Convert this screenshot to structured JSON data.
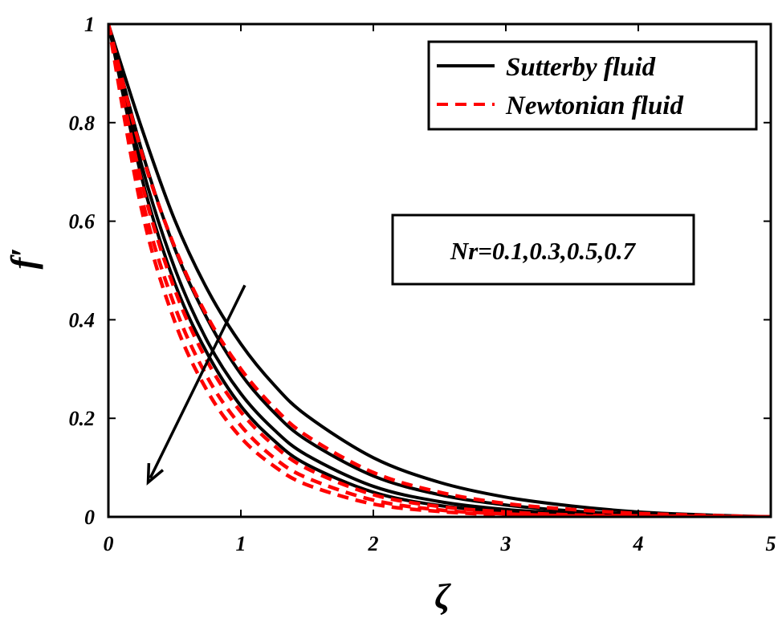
{
  "chart_data": {
    "type": "line",
    "xlabel": "ζ",
    "ylabel": "f′",
    "xlim": [
      0,
      5
    ],
    "ylim": [
      0,
      1
    ],
    "xticks": [
      0,
      1,
      2,
      3,
      4,
      5
    ],
    "yticks": [
      0,
      0.2,
      0.4,
      0.6,
      0.8,
      1
    ],
    "xtick_labels": [
      "0",
      "1",
      "2",
      "3",
      "4",
      "5"
    ],
    "ytick_labels": [
      "0",
      "0.2",
      "0.4",
      "0.6",
      "0.8",
      "1"
    ],
    "grid": false,
    "legend_position": "top-right",
    "legend": [
      {
        "label": "Sutterby fluid",
        "color": "#000000",
        "dash": "solid"
      },
      {
        "label": "Newtonian fluid",
        "color": "#ff0000",
        "dash": "dashed"
      }
    ],
    "annotation": {
      "text": "Nr=0.1,0.3,0.5,0.7"
    },
    "arrow": {
      "from": [
        1.03,
        0.47
      ],
      "to": [
        0.3,
        0.07
      ]
    },
    "series": [
      {
        "group": "Sutterby fluid",
        "color": "#000000",
        "dash": "solid",
        "values": [
          [
            0,
            1
          ],
          [
            0.25,
            0.79
          ],
          [
            0.5,
            0.603
          ],
          [
            0.75,
            0.46
          ],
          [
            1,
            0.351
          ],
          [
            1.25,
            0.268
          ],
          [
            1.5,
            0.205
          ],
          [
            2,
            0.12
          ],
          [
            2.5,
            0.07
          ],
          [
            3,
            0.04
          ],
          [
            3.5,
            0.022
          ],
          [
            4,
            0.01
          ],
          [
            4.5,
            0.004
          ],
          [
            5,
            0
          ]
        ]
      },
      {
        "group": "Sutterby fluid",
        "color": "#000000",
        "dash": "solid",
        "values": [
          [
            0,
            1
          ],
          [
            0.25,
            0.745
          ],
          [
            0.5,
            0.545
          ],
          [
            0.75,
            0.4
          ],
          [
            1,
            0.29
          ],
          [
            1.25,
            0.212
          ],
          [
            1.5,
            0.155
          ],
          [
            2,
            0.083
          ],
          [
            2.5,
            0.045
          ],
          [
            3,
            0.024
          ],
          [
            3.5,
            0.012
          ],
          [
            4,
            0.005
          ],
          [
            4.5,
            0.002
          ],
          [
            5,
            0
          ]
        ]
      },
      {
        "group": "Sutterby fluid",
        "color": "#000000",
        "dash": "solid",
        "values": [
          [
            0,
            1
          ],
          [
            0.25,
            0.715
          ],
          [
            0.5,
            0.505
          ],
          [
            0.75,
            0.355
          ],
          [
            1,
            0.25
          ],
          [
            1.25,
            0.177
          ],
          [
            1.5,
            0.125
          ],
          [
            2,
            0.062
          ],
          [
            2.5,
            0.031
          ],
          [
            3,
            0.015
          ],
          [
            3.5,
            0.007
          ],
          [
            4,
            0.003
          ],
          [
            4.5,
            0.001
          ],
          [
            5,
            0
          ]
        ]
      },
      {
        "group": "Sutterby fluid",
        "color": "#000000",
        "dash": "solid",
        "values": [
          [
            0,
            1
          ],
          [
            0.25,
            0.69
          ],
          [
            0.5,
            0.475
          ],
          [
            0.75,
            0.33
          ],
          [
            1,
            0.225
          ],
          [
            1.25,
            0.155
          ],
          [
            1.5,
            0.106
          ],
          [
            2,
            0.05
          ],
          [
            2.5,
            0.023
          ],
          [
            3,
            0.011
          ],
          [
            3.5,
            0.005
          ],
          [
            4,
            0.002
          ],
          [
            4.5,
            0.001
          ],
          [
            5,
            0
          ]
        ]
      },
      {
        "group": "Newtonian fluid",
        "color": "#ff0000",
        "dash": "dashed",
        "values": [
          [
            0,
            1
          ],
          [
            0.25,
            0.74
          ],
          [
            0.5,
            0.548
          ],
          [
            0.75,
            0.405
          ],
          [
            1,
            0.3
          ],
          [
            1.25,
            0.222
          ],
          [
            1.5,
            0.164
          ],
          [
            2,
            0.09
          ],
          [
            2.5,
            0.05
          ],
          [
            3,
            0.027
          ],
          [
            3.5,
            0.015
          ],
          [
            4,
            0.007
          ],
          [
            4.5,
            0.003
          ],
          [
            5,
            0
          ]
        ]
      },
      {
        "group": "Newtonian fluid",
        "color": "#ff0000",
        "dash": "dashed",
        "values": [
          [
            0,
            1
          ],
          [
            0.25,
            0.68
          ],
          [
            0.5,
            0.462
          ],
          [
            0.75,
            0.314
          ],
          [
            1,
            0.213
          ],
          [
            1.25,
            0.145
          ],
          [
            1.5,
            0.098
          ],
          [
            2,
            0.045
          ],
          [
            2.5,
            0.021
          ],
          [
            3,
            0.01
          ],
          [
            3.5,
            0.004
          ],
          [
            4,
            0.002
          ],
          [
            4.5,
            0.001
          ],
          [
            5,
            0
          ]
        ]
      },
      {
        "group": "Newtonian fluid",
        "color": "#ff0000",
        "dash": "dashed",
        "values": [
          [
            0,
            1
          ],
          [
            0.25,
            0.65
          ],
          [
            0.5,
            0.428
          ],
          [
            0.75,
            0.282
          ],
          [
            1,
            0.185
          ],
          [
            1.25,
            0.12
          ],
          [
            1.5,
            0.079
          ],
          [
            2,
            0.034
          ],
          [
            2.5,
            0.014
          ],
          [
            3,
            0.006
          ],
          [
            3.5,
            0.002
          ],
          [
            4,
            0.001
          ],
          [
            4.5,
            0
          ],
          [
            5,
            0
          ]
        ]
      },
      {
        "group": "Newtonian fluid",
        "color": "#ff0000",
        "dash": "dashed",
        "values": [
          [
            0,
            1
          ],
          [
            0.25,
            0.625
          ],
          [
            0.5,
            0.397
          ],
          [
            0.75,
            0.254
          ],
          [
            1,
            0.161
          ],
          [
            1.25,
            0.103
          ],
          [
            1.5,
            0.065
          ],
          [
            2,
            0.026
          ],
          [
            2.5,
            0.011
          ],
          [
            3,
            0.004
          ],
          [
            3.5,
            0.002
          ],
          [
            4,
            0.001
          ],
          [
            4.5,
            0
          ],
          [
            5,
            0
          ]
        ]
      }
    ]
  }
}
